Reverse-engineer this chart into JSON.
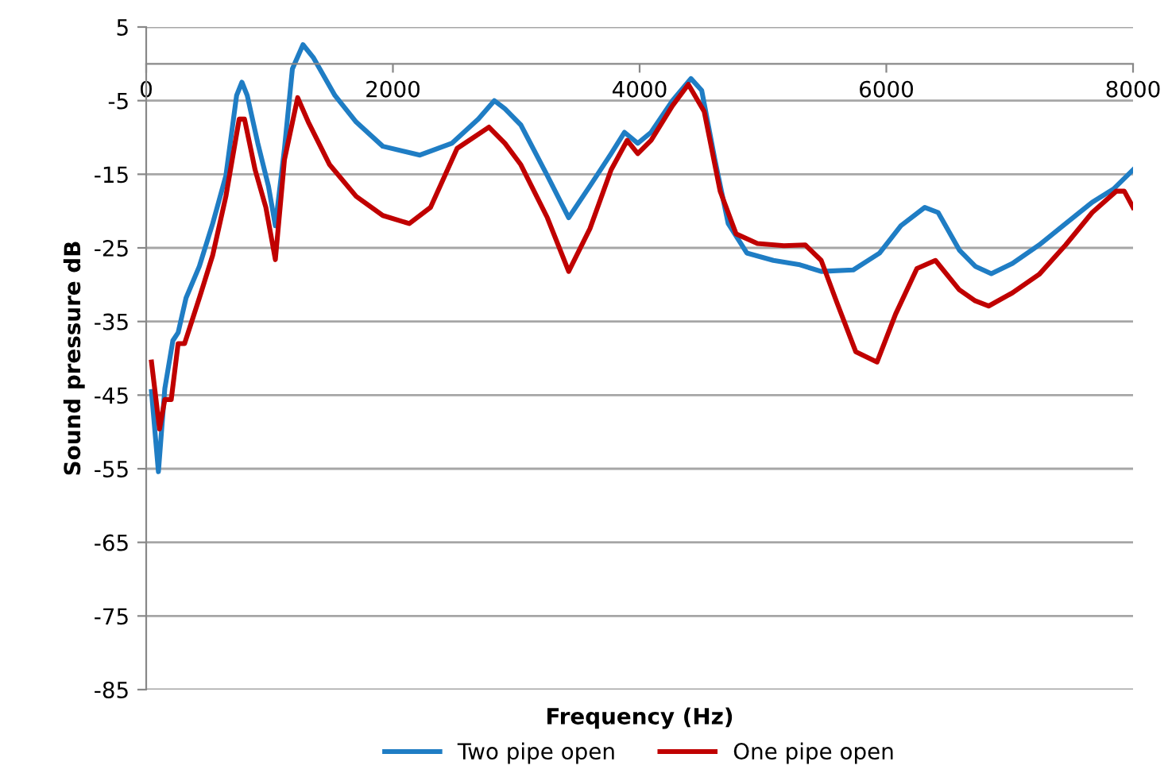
{
  "chart_data": {
    "type": "line",
    "xlabel": "Frequency (Hz)",
    "ylabel": "Sound pressure dB",
    "xlim": [
      0,
      8000
    ],
    "xticks": [
      0,
      2000,
      4000,
      6000,
      8000
    ],
    "ylim": [
      -85,
      5
    ],
    "yticks": [
      -85,
      -75,
      -65,
      -55,
      -45,
      -35,
      -25,
      -15,
      -5,
      5
    ],
    "grid": "y",
    "legend": "bottom",
    "marker": "none",
    "line_style": "solid",
    "series": [
      {
        "name": "Two pipe open",
        "color": "#1f7dc4",
        "x": [
          43,
          99,
          151,
          216,
          259,
          323,
          431,
          539,
          646,
          733,
          776,
          819,
          905,
          991,
          1047,
          1121,
          1185,
          1271,
          1357,
          1530,
          1702,
          1918,
          2219,
          2477,
          2693,
          2822,
          2908,
          3037,
          3252,
          3425,
          3597,
          3769,
          3877,
          3985,
          4093,
          4266,
          4416,
          4503,
          4610,
          4718,
          4869,
          5084,
          5300,
          5472,
          5731,
          5946,
          6118,
          6312,
          6420,
          6592,
          6721,
          6851,
          7023,
          7239,
          7454,
          7669,
          7842,
          8000
        ],
        "values": [
          -44.5,
          -55.4,
          -44.1,
          -37.6,
          -36.5,
          -31.8,
          -27.5,
          -21.7,
          -15.2,
          -4.3,
          -2.5,
          -4.3,
          -10.8,
          -16.6,
          -22.0,
          -11.5,
          -0.7,
          2.6,
          0.8,
          -4.3,
          -7.9,
          -11.2,
          -12.4,
          -10.8,
          -7.5,
          -5.0,
          -6.1,
          -8.3,
          -15.2,
          -20.9,
          -16.6,
          -12.2,
          -9.3,
          -10.8,
          -9.3,
          -5.0,
          -2.0,
          -3.6,
          -13.0,
          -21.7,
          -25.7,
          -26.7,
          -27.3,
          -28.2,
          -28.0,
          -25.7,
          -22.0,
          -19.5,
          -20.2,
          -25.3,
          -27.5,
          -28.5,
          -27.1,
          -24.6,
          -21.7,
          -18.8,
          -17.0,
          -14.4
        ]
      },
      {
        "name": "One pipe open",
        "color": "#c00000",
        "x": [
          43,
          108,
          151,
          203,
          259,
          311,
          431,
          539,
          646,
          754,
          797,
          883,
          970,
          1047,
          1121,
          1228,
          1314,
          1487,
          1702,
          1918,
          2133,
          2305,
          2520,
          2779,
          2908,
          3037,
          3252,
          3425,
          3597,
          3769,
          3899,
          3985,
          4093,
          4266,
          4395,
          4524,
          4653,
          4782,
          4955,
          5170,
          5343,
          5472,
          5601,
          5752,
          5925,
          6075,
          6248,
          6398,
          6592,
          6721,
          6829,
          7023,
          7239,
          7454,
          7669,
          7864,
          7929,
          8000
        ],
        "values": [
          -40.5,
          -49.6,
          -45.6,
          -45.6,
          -38.0,
          -38.0,
          -31.8,
          -26.0,
          -18.0,
          -7.5,
          -7.5,
          -14.4,
          -19.5,
          -26.6,
          -13.0,
          -4.6,
          -7.9,
          -13.7,
          -18.0,
          -20.6,
          -21.7,
          -19.5,
          -11.5,
          -8.6,
          -10.8,
          -13.7,
          -20.9,
          -28.2,
          -22.4,
          -14.4,
          -10.4,
          -12.2,
          -10.4,
          -5.7,
          -2.8,
          -6.5,
          -17.3,
          -23.1,
          -24.4,
          -24.7,
          -24.6,
          -26.7,
          -32.5,
          -39.1,
          -40.5,
          -34.0,
          -27.8,
          -26.7,
          -30.7,
          -32.2,
          -32.9,
          -31.1,
          -28.6,
          -24.6,
          -20.2,
          -17.3,
          -17.3,
          -19.5
        ]
      }
    ]
  }
}
